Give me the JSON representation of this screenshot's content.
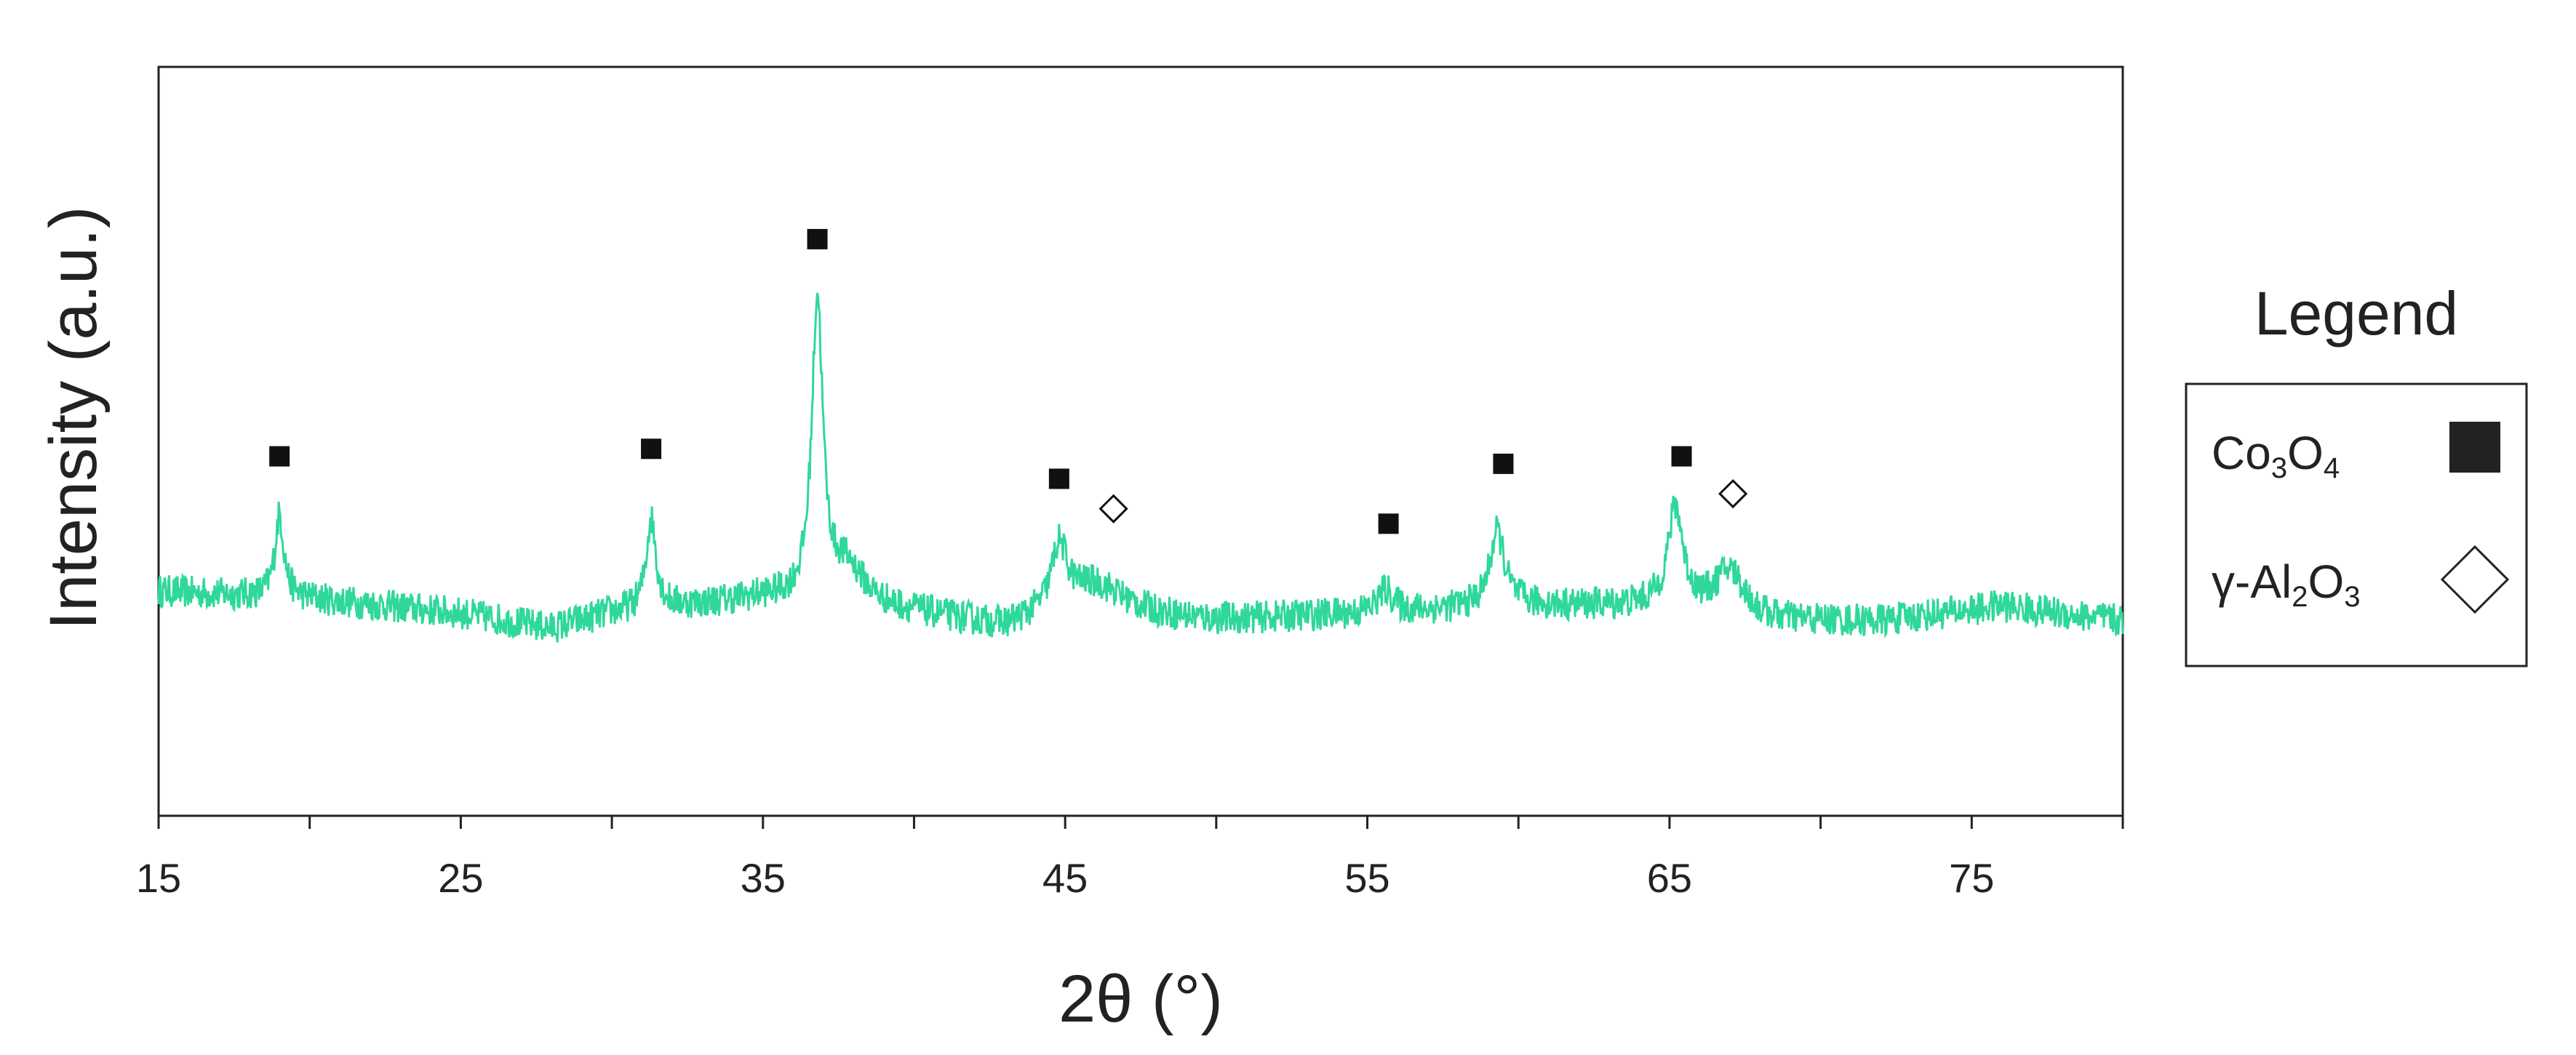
{
  "chart_data": {
    "type": "line",
    "xlabel": "2θ (°)",
    "ylabel": "Intensity (a.u.)",
    "xlim": [
      15,
      80
    ],
    "ylim": [
      0,
      100
    ],
    "x_ticks": [
      15,
      20,
      25,
      30,
      35,
      40,
      45,
      50,
      55,
      60,
      65,
      70,
      75,
      80
    ],
    "x_tick_labels": [
      "15",
      "25",
      "35",
      "45",
      "55",
      "65",
      "75"
    ],
    "x_tick_label_values": [
      15,
      25,
      35,
      45,
      55,
      65,
      75
    ],
    "grid": false,
    "legend": {
      "title": "Legend",
      "position": "right",
      "entries": [
        {
          "base": "Co",
          "sub1": "3",
          "mid": "O",
          "sub2": "4",
          "marker": "filled-square",
          "color": "#222222"
        },
        {
          "base": "γ-Al",
          "sub1": "2",
          "mid": "O",
          "sub2": "3",
          "marker": "open-diamond",
          "color": "#222222"
        }
      ]
    },
    "series": [
      {
        "color": "#2fd89a",
        "noise_amplitude": 2.2,
        "baseline_points": [
          [
            15,
            30
          ],
          [
            20,
            29
          ],
          [
            25,
            27
          ],
          [
            28,
            25
          ],
          [
            30,
            27
          ],
          [
            35,
            29
          ],
          [
            40,
            27
          ],
          [
            43,
            25
          ],
          [
            45,
            27
          ],
          [
            50,
            26
          ],
          [
            55,
            27
          ],
          [
            60,
            28
          ],
          [
            65,
            28
          ],
          [
            68,
            26
          ],
          [
            72,
            26
          ],
          [
            76,
            28
          ],
          [
            80,
            26
          ]
        ],
        "peaks": [
          {
            "x": 19.0,
            "height": 11,
            "width": 0.18
          },
          {
            "x": 31.3,
            "height": 12,
            "width": 0.2
          },
          {
            "x": 36.8,
            "height": 40,
            "width": 0.22
          },
          {
            "x": 37.8,
            "height": 5,
            "width": 0.7
          },
          {
            "x": 44.8,
            "height": 8,
            "width": 0.3
          },
          {
            "x": 46.0,
            "height": 4,
            "width": 1.2
          },
          {
            "x": 55.6,
            "height": 3,
            "width": 0.3
          },
          {
            "x": 59.3,
            "height": 10,
            "width": 0.3
          },
          {
            "x": 65.2,
            "height": 13,
            "width": 0.3
          },
          {
            "x": 67.0,
            "height": 6,
            "width": 0.6
          }
        ]
      }
    ],
    "phase_markers": [
      {
        "x": 19.0,
        "y": 48,
        "marker": "filled-square"
      },
      {
        "x": 31.3,
        "y": 49,
        "marker": "filled-square"
      },
      {
        "x": 36.8,
        "y": 77,
        "marker": "filled-square"
      },
      {
        "x": 44.8,
        "y": 45,
        "marker": "filled-square"
      },
      {
        "x": 46.6,
        "y": 41,
        "marker": "open-diamond"
      },
      {
        "x": 55.7,
        "y": 39,
        "marker": "filled-square"
      },
      {
        "x": 59.5,
        "y": 47,
        "marker": "filled-square"
      },
      {
        "x": 65.4,
        "y": 48,
        "marker": "filled-square"
      },
      {
        "x": 67.1,
        "y": 43,
        "marker": "open-diamond"
      }
    ]
  }
}
